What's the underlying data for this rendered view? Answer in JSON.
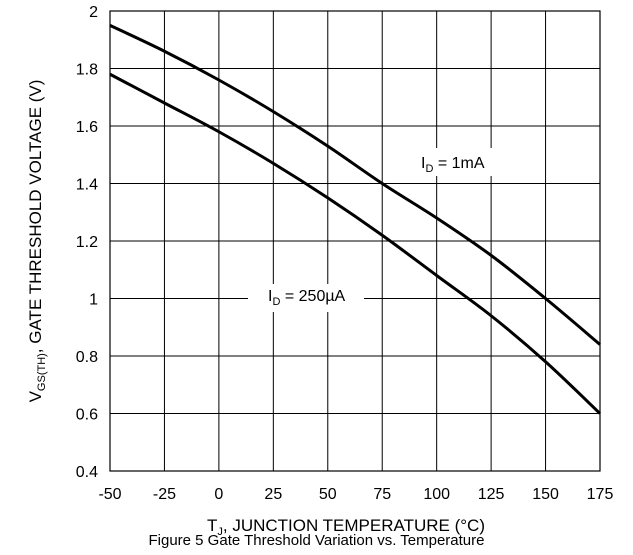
{
  "chart_data": {
    "type": "line",
    "xlabel": {
      "main": "T",
      "sub": "J",
      "rest": ", JUNCTION TEMPERATURE (°C)"
    },
    "ylabel": {
      "main": "V",
      "sub": "GS(TH)",
      "rest": ", GATE THRESHOLD VOLTAGE (V)"
    },
    "xlim": [
      -50,
      175
    ],
    "ylim": [
      0.4,
      2
    ],
    "x_ticks": [
      -50,
      -25,
      0,
      25,
      50,
      75,
      100,
      125,
      150,
      175
    ],
    "y_ticks": [
      0.4,
      0.6,
      0.8,
      1,
      1.2,
      1.4,
      1.6,
      1.8,
      2
    ],
    "y_tick_labels": [
      "0.4",
      "0.6",
      "0.8",
      "1",
      "1.2",
      "1.4",
      "1.6",
      "1.8",
      "2"
    ],
    "grid": true,
    "series": [
      {
        "label_main": "I",
        "label_sub": "D",
        "label_rest": " = 1mA",
        "x": [
          -50,
          -25,
          0,
          25,
          50,
          75,
          100,
          125,
          150,
          175
        ],
        "y": [
          1.95,
          1.86,
          1.76,
          1.65,
          1.53,
          1.4,
          1.28,
          1.15,
          1.0,
          0.84
        ]
      },
      {
        "label_main": "I",
        "label_sub": "D",
        "label_rest": " = 250µA",
        "x": [
          -50,
          -25,
          0,
          25,
          50,
          75,
          100,
          125,
          150,
          175
        ],
        "y": [
          1.78,
          1.68,
          1.58,
          1.47,
          1.35,
          1.22,
          1.08,
          0.94,
          0.78,
          0.6
        ]
      }
    ],
    "caption": "Figure 5 Gate Threshold Variation vs. Temperature"
  }
}
